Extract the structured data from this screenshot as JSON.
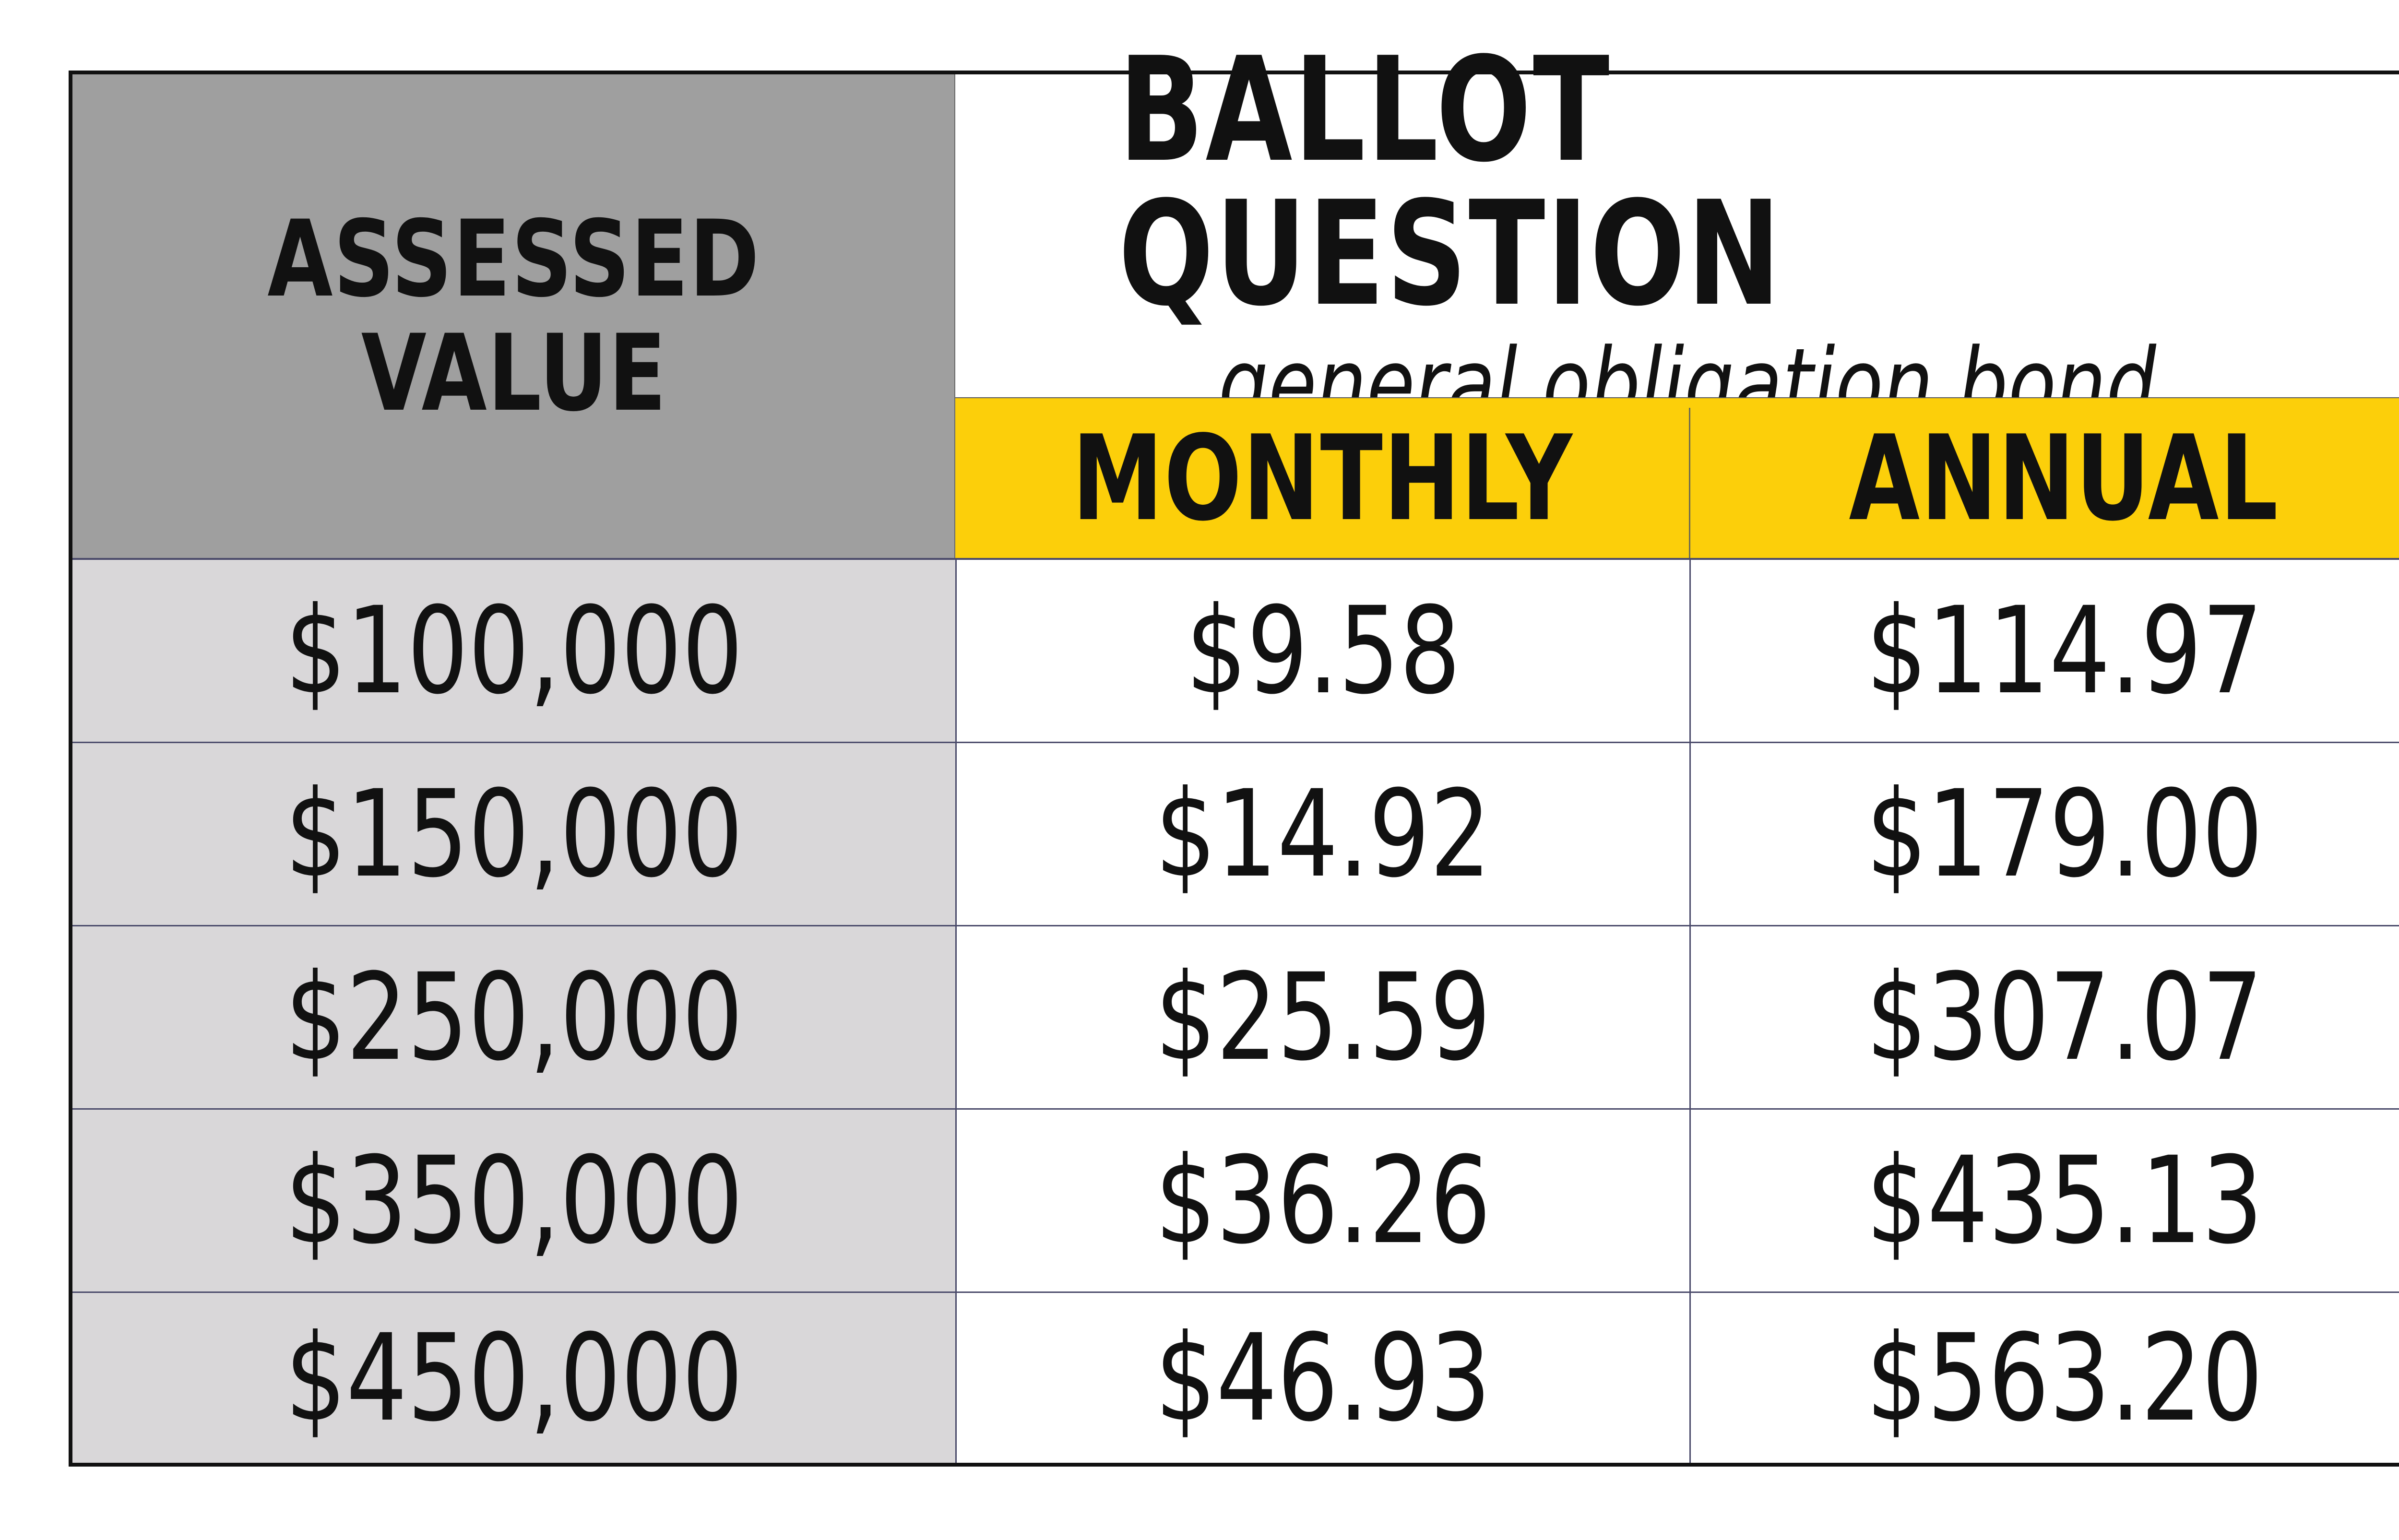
{
  "header": {
    "assessed_line1": "ASSESSED",
    "assessed_line2": "VALUE",
    "title": "BALLOT QUESTION",
    "subtitle": "general obligation bond",
    "col_monthly": "MONTHLY",
    "col_annual": "ANNUAL"
  },
  "rows": [
    {
      "assessed": "$100,000",
      "monthly": "$9.58",
      "annual": "$114.97"
    },
    {
      "assessed": "$150,000",
      "monthly": "$14.92",
      "annual": "$179.00"
    },
    {
      "assessed": "$250,000",
      "monthly": "$25.59",
      "annual": "$307.07"
    },
    {
      "assessed": "$350,000",
      "monthly": "$36.26",
      "annual": "$435.13"
    },
    {
      "assessed": "$450,000",
      "monthly": "$46.93",
      "annual": "$563.20"
    }
  ],
  "colors": {
    "header_gray": "#9f9f9f",
    "first_column_gray": "#d9d7d9",
    "header_yellow": "#fccf0a",
    "text": "#111111"
  }
}
